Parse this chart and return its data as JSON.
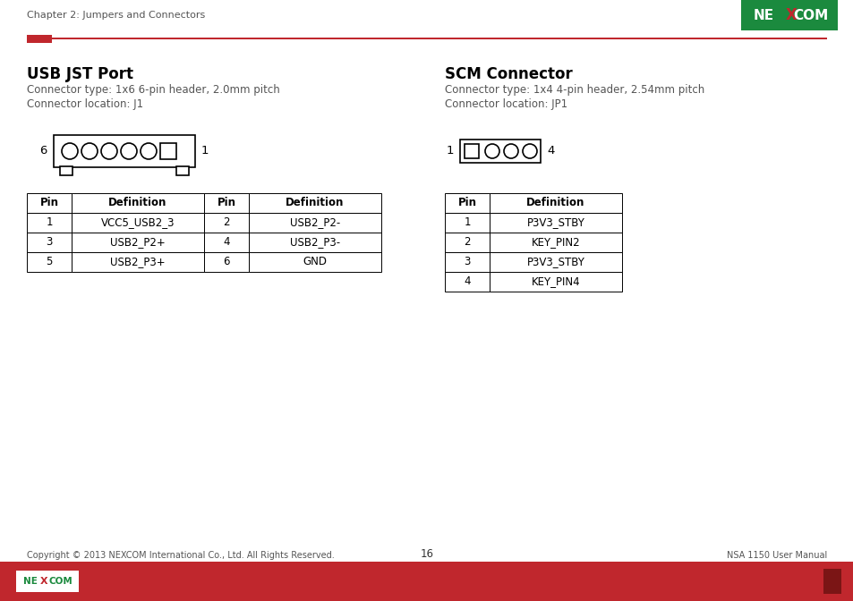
{
  "page_header": "Chapter 2: Jumpers and Connectors",
  "page_number": "16",
  "footer_copyright": "Copyright © 2013 NEXCOM International Co., Ltd. All Rights Reserved.",
  "footer_right": "NSA 1150 User Manual",
  "red_color": "#C0272D",
  "nexcom_green": "#1B8A3E",
  "usb_title": "USB JST Port",
  "usb_type": "Connector type: 1x6 6-pin header, 2.0mm pitch",
  "usb_location": "Connector location: J1",
  "scm_title": "SCM Connector",
  "scm_type": "Connector type: 1x4 4-pin header, 2.54mm pitch",
  "scm_location": "Connector location: JP1",
  "usb_table_headers": [
    "Pin",
    "Definition",
    "Pin",
    "Definition"
  ],
  "usb_table_rows": [
    [
      "1",
      "VCC5_USB2_3",
      "2",
      "USB2_P2-"
    ],
    [
      "3",
      "USB2_P2+",
      "4",
      "USB2_P3-"
    ],
    [
      "5",
      "USB2_P3+",
      "6",
      "GND"
    ]
  ],
  "scm_table_headers": [
    "Pin",
    "Definition"
  ],
  "scm_table_rows": [
    [
      "1",
      "P3V3_STBY"
    ],
    [
      "2",
      "KEY_PIN2"
    ],
    [
      "3",
      "P3V3_STBY"
    ],
    [
      "4",
      "KEY_PIN4"
    ]
  ]
}
